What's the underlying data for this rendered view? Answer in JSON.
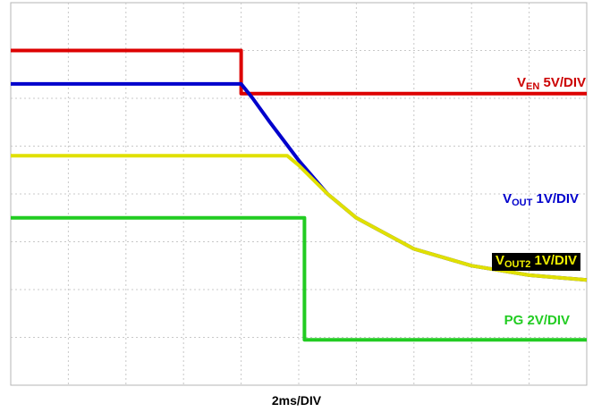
{
  "chart_data": {
    "type": "line",
    "xlabel": "2ms/DIV",
    "x_divisions": 10,
    "y_divisions": 8,
    "grid": true,
    "series": [
      {
        "name": "V_EN 5V/DIV",
        "color": "#dd0000",
        "x": [
          0,
          4.0,
          4.0,
          10
        ],
        "y": [
          7.0,
          7.0,
          6.1,
          6.1
        ]
      },
      {
        "name": "V_OUT 1V/DIV",
        "color": "#0000cc",
        "x": [
          0,
          4.0,
          4.2,
          4.5,
          5.0,
          5.5,
          6.0,
          7.0,
          8.0,
          9.0,
          10
        ],
        "y": [
          6.3,
          6.3,
          6.0,
          5.5,
          4.7,
          4.0,
          3.5,
          2.85,
          2.5,
          2.3,
          2.2
        ]
      },
      {
        "name": "V_OUT2 1V/DIV",
        "color": "#e0e000",
        "x": [
          0,
          4.8,
          5.0,
          5.5,
          6.0,
          7.0,
          8.0,
          9.0,
          10
        ],
        "y": [
          4.8,
          4.8,
          4.6,
          4.0,
          3.5,
          2.85,
          2.5,
          2.3,
          2.2
        ]
      },
      {
        "name": "PG 2V/DIV",
        "color": "#22cc22",
        "x": [
          0,
          5.1,
          5.1,
          10
        ],
        "y": [
          3.5,
          3.5,
          0.95,
          0.95
        ]
      }
    ],
    "annotations": [
      {
        "main": "V",
        "sub": "EN",
        "rest": " 5V/DIV"
      },
      {
        "main": "V",
        "sub": "OUT",
        "rest": " 1V/DIV"
      },
      {
        "main": "V",
        "sub": "OUT2",
        "rest": " 1V/DIV"
      },
      {
        "main": "",
        "sub": "",
        "rest": "PG 2V/DIV"
      }
    ]
  }
}
